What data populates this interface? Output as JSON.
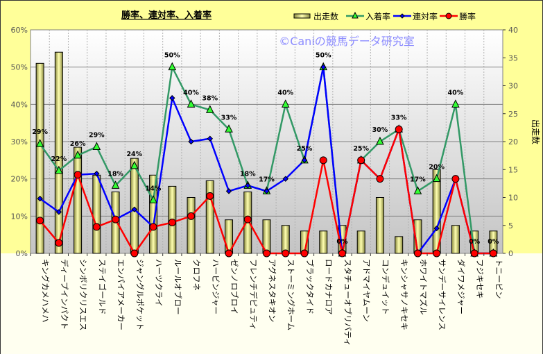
{
  "chart_data": {
    "type": "bar",
    "title": "勝率、連対率、入着率",
    "watermark": "©Caniの競馬データ研究室",
    "ylabel_left": "",
    "ylabel_right": "出走数",
    "ylim_left": [
      0,
      60
    ],
    "ylim_right": [
      0,
      40
    ],
    "yticks_left": [
      "0%",
      "10%",
      "20%",
      "30%",
      "40%",
      "50%",
      "60%"
    ],
    "yticks_right": [
      "0",
      "5",
      "10",
      "15",
      "20",
      "25",
      "30",
      "35",
      "40"
    ],
    "legend_position": "top-right",
    "categories": [
      "キングカメハメハ",
      "ディープインパクト",
      "シンボリクリスエス",
      "ステイゴールド",
      "エンパイアメーカー",
      "ジャングルポケット",
      "ハーツクライ",
      "ルールオブロー",
      "クロフネ",
      "ハービンジャー",
      "ゼンノロブロイ",
      "フレンチデピュティ",
      "アグネスタキオン",
      "ストーミングホーム",
      "ブラックタイド",
      "ロードカナロア",
      "スタチューオブリバティ",
      "アドマイヤムーン",
      "コンデュイット",
      "キンシャサノキセキ",
      "ホワイトマズル",
      "サンデーサイレンス",
      "ダイワメジャー",
      "フジキセキ",
      "トニービン"
    ],
    "series": [
      {
        "name": "出走数",
        "kind": "bar",
        "axis": "right",
        "color": "#FFFF99",
        "values": [
          34,
          36,
          19,
          14,
          11,
          17,
          14,
          12,
          10,
          13,
          6,
          11,
          6,
          5,
          4,
          4,
          5,
          4,
          10,
          3,
          6,
          15,
          5,
          4,
          4
        ]
      },
      {
        "name": "入着率",
        "kind": "line",
        "axis": "left",
        "color": "#339966",
        "marker": "triangle",
        "values": [
          29.4,
          22.2,
          26.3,
          28.6,
          18.2,
          23.5,
          14.3,
          50.0,
          40.0,
          38.5,
          33.3,
          18.2,
          16.7,
          40.0,
          25.0,
          50.0,
          0,
          25.0,
          30.0,
          33.3,
          16.7,
          20.0,
          40.0,
          0,
          0
        ],
        "labels": [
          "29%",
          "22%",
          "26%",
          "29%",
          "18%",
          "24%",
          "14%",
          "50%",
          "40%",
          "38%",
          "33%",
          "18%",
          "17%",
          "40%",
          "25%",
          "50%",
          "0%",
          "25%",
          "30%",
          "33%",
          "17%",
          "20%",
          "40%",
          "0%",
          "0%"
        ]
      },
      {
        "name": "連対率",
        "kind": "line",
        "axis": "left",
        "color": "#0000FF",
        "marker": "diamond",
        "values": [
          14.7,
          11.1,
          21.1,
          21.4,
          9.1,
          11.8,
          7.1,
          41.7,
          30.0,
          30.8,
          16.7,
          18.2,
          16.7,
          20.0,
          25.0,
          50.0,
          0,
          25.0,
          20.0,
          33.3,
          0,
          6.7,
          20.0,
          0,
          0
        ]
      },
      {
        "name": "勝率",
        "kind": "line",
        "axis": "left",
        "color": "#FF0000",
        "marker": "circle",
        "values": [
          8.8,
          2.8,
          21.1,
          7.1,
          9.1,
          0,
          7.1,
          8.3,
          10.0,
          15.4,
          0,
          9.1,
          0,
          0,
          0,
          25.0,
          0,
          25.0,
          20.0,
          33.3,
          0,
          0,
          20.0,
          0,
          0
        ]
      }
    ]
  }
}
